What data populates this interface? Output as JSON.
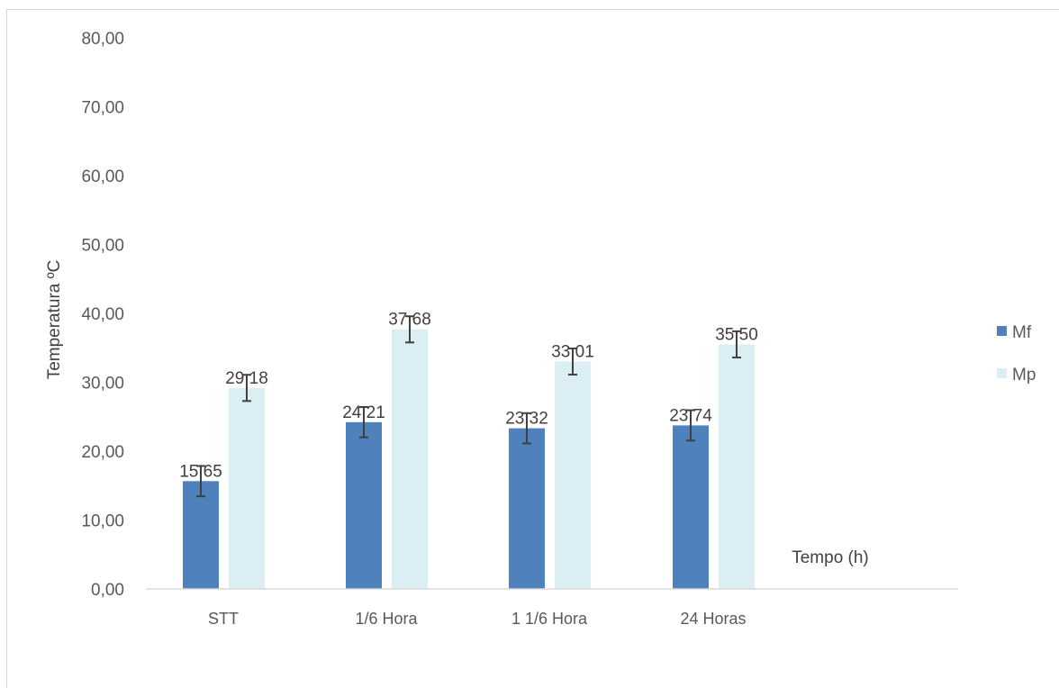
{
  "chart_data": {
    "type": "bar",
    "title": "",
    "xlabel": "Tempo (h)",
    "ylabel": "Temperatura ºC",
    "ylim": [
      0,
      80
    ],
    "yticks": [
      "0,00",
      "10,00",
      "20,00",
      "30,00",
      "40,00",
      "50,00",
      "60,00",
      "70,00",
      "80,00"
    ],
    "categories": [
      "STT",
      "1/6 Hora",
      "1 1/6 Hora",
      "24 Horas"
    ],
    "series": [
      {
        "name": "Mf",
        "color": "#4f81bd",
        "values": [
          15.65,
          24.21,
          23.32,
          23.74
        ],
        "labels": [
          "15,65",
          "24,21",
          "23,32",
          "23,74"
        ],
        "error": [
          2.2,
          2.2,
          2.2,
          2.2
        ]
      },
      {
        "name": "Mp",
        "color": "#dbeef3",
        "values": [
          29.18,
          37.68,
          33.01,
          35.5
        ],
        "labels": [
          "29,18",
          "37,68",
          "33,01",
          "35,50"
        ],
        "error": [
          1.9,
          1.9,
          1.9,
          1.9
        ]
      }
    ],
    "grid": false,
    "legend_position": "right"
  }
}
